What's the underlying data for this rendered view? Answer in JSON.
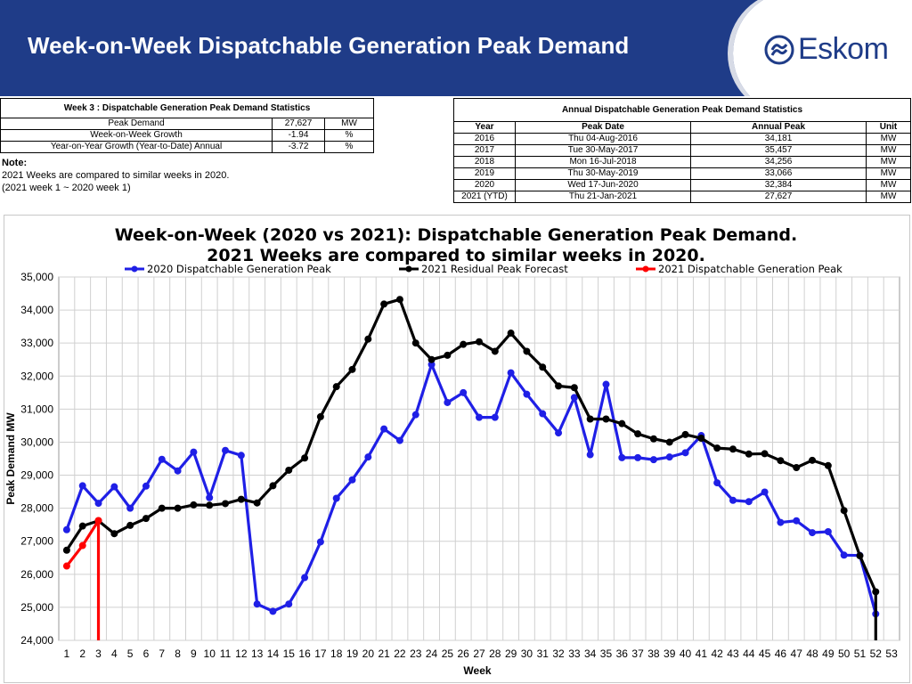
{
  "header": {
    "title": "Week-on-Week Dispatchable Generation Peak Demand",
    "logo_text": "Eskom"
  },
  "weekly_stats": {
    "caption": "Week 3 : Dispatchable Generation Peak Demand Statistics",
    "rows": [
      {
        "label": "Peak Demand",
        "value": "27,627",
        "unit": "MW"
      },
      {
        "label": "Week-on-Week Growth",
        "value": "-1.94",
        "unit": "%"
      },
      {
        "label": "Year-on-Year Growth (Year-to-Date) Annual",
        "value": "-3.72",
        "unit": "%"
      }
    ],
    "note_title": "Note:",
    "note_line1": "2021 Weeks are compared to similar weeks in 2020.",
    "note_line2": "(2021 week 1 ~ 2020 week 1)"
  },
  "annual_stats": {
    "caption": "Annual Dispatchable Generation Peak Demand Statistics",
    "headers": [
      "Year",
      "Peak Date",
      "Annual Peak",
      "Unit"
    ],
    "rows": [
      [
        "2016",
        "Thu 04-Aug-2016",
        "34,181",
        "MW"
      ],
      [
        "2017",
        "Tue 30-May-2017",
        "35,457",
        "MW"
      ],
      [
        "2018",
        "Mon 16-Jul-2018",
        "34,256",
        "MW"
      ],
      [
        "2019",
        "Thu 30-May-2019",
        "33,066",
        "MW"
      ],
      [
        "2020",
        "Wed 17-Jun-2020",
        "32,384",
        "MW"
      ],
      [
        "2021 (YTD)",
        "Thu 21-Jan-2021",
        "27,627",
        "MW"
      ]
    ]
  },
  "chart_data": {
    "type": "line",
    "title": "Week-on-Week (2020 vs 2021): Dispatchable Generation Peak Demand.",
    "subtitle": "2021 Weeks are compared to similar weeks in 2020.",
    "xlabel": "Week",
    "ylabel": "Peak Demand MW",
    "ylim": [
      24000,
      35000
    ],
    "yticks": [
      24000,
      25000,
      26000,
      27000,
      28000,
      29000,
      30000,
      31000,
      32000,
      33000,
      34000,
      35000
    ],
    "ytick_labels": [
      "24,000",
      "25,000",
      "26,000",
      "27,000",
      "28,000",
      "29,000",
      "30,000",
      "31,000",
      "32,000",
      "33,000",
      "34,000",
      "35,000"
    ],
    "x": [
      1,
      2,
      3,
      4,
      5,
      6,
      7,
      8,
      9,
      10,
      11,
      12,
      13,
      14,
      15,
      16,
      17,
      18,
      19,
      20,
      21,
      22,
      23,
      24,
      25,
      26,
      27,
      28,
      29,
      30,
      31,
      32,
      33,
      34,
      35,
      36,
      37,
      38,
      39,
      40,
      41,
      42,
      43,
      44,
      45,
      46,
      47,
      48,
      49,
      50,
      51,
      52,
      53
    ],
    "grid": true,
    "legend_position": "top",
    "series": [
      {
        "name": "2020 Dispatchable Generation Peak",
        "color": "#1f1fe6",
        "values": [
          27350,
          28680,
          28150,
          28650,
          28000,
          28670,
          29480,
          29130,
          29700,
          28320,
          29750,
          29600,
          25100,
          24880,
          25100,
          25900,
          26980,
          28300,
          28860,
          29550,
          30400,
          30050,
          30830,
          32350,
          31200,
          31500,
          30750,
          30750,
          32100,
          31450,
          30860,
          30280,
          31350,
          29620,
          31750,
          29530,
          29530,
          29470,
          29550,
          29680,
          30200,
          28770,
          28240,
          28200,
          28490,
          27570,
          27620,
          27260,
          27290,
          26580,
          26570,
          24800,
          null
        ]
      },
      {
        "name": "2021 Residual Peak Forecast",
        "color": "#000000",
        "values": [
          26730,
          27460,
          27620,
          27230,
          27480,
          27690,
          28000,
          28000,
          28100,
          28090,
          28140,
          28270,
          28160,
          28680,
          29150,
          29520,
          30770,
          31680,
          32200,
          33120,
          34180,
          34320,
          33000,
          32500,
          32630,
          32960,
          33040,
          32750,
          33300,
          32750,
          32270,
          31700,
          31650,
          30700,
          30700,
          30560,
          30250,
          30100,
          30000,
          30230,
          30120,
          29820,
          29790,
          29640,
          29650,
          29440,
          29230,
          29450,
          29290,
          27930,
          26560,
          25470,
          null
        ]
      },
      {
        "name": "2021 Dispatchable Generation Peak",
        "color": "#ff0000",
        "values": [
          26250,
          26870,
          27627,
          null,
          null,
          null,
          null,
          null,
          null,
          null,
          null,
          null,
          null,
          null,
          null,
          null,
          null,
          null,
          null,
          null,
          null,
          null,
          null,
          null,
          null,
          null,
          null,
          null,
          null,
          null,
          null,
          null,
          null,
          null,
          null,
          null,
          null,
          null,
          null,
          null,
          null,
          null,
          null,
          null,
          null,
          null,
          null,
          null,
          null,
          null,
          null,
          null,
          null
        ]
      }
    ]
  }
}
